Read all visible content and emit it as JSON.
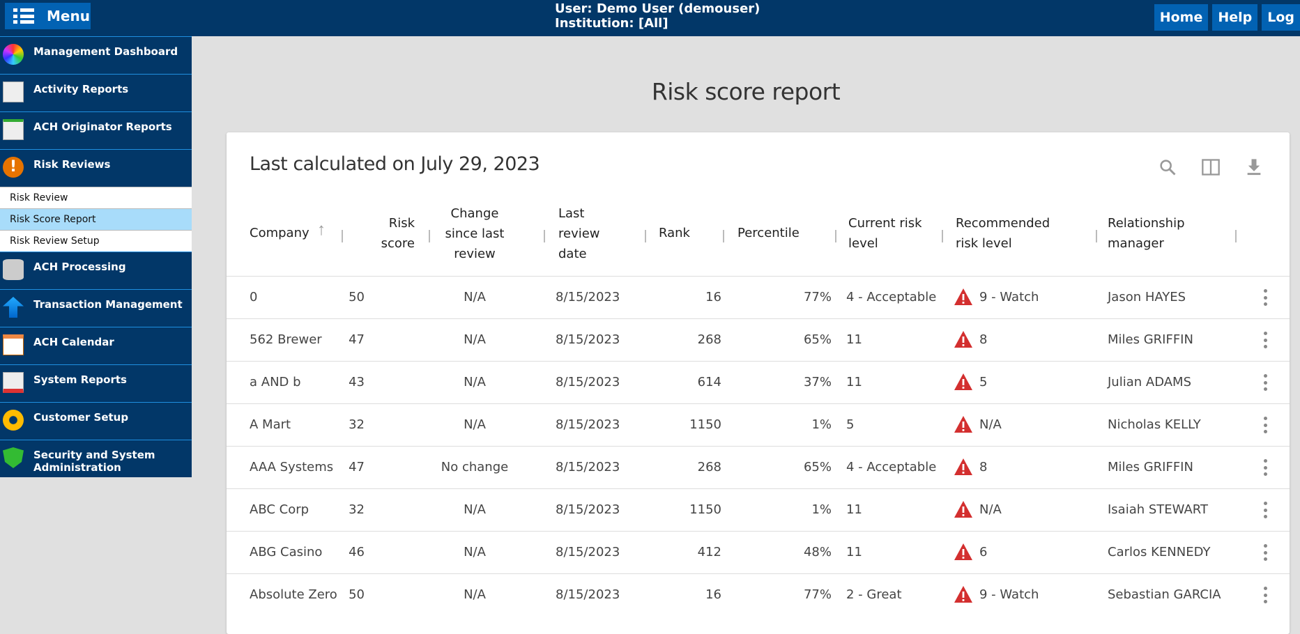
{
  "header": {
    "menu_label": "Menu",
    "user_line": "User: Demo User (demouser)",
    "institution_line": "Institution: [All]",
    "buttons": [
      "Home",
      "Help",
      "Log"
    ]
  },
  "sidebar": {
    "items": [
      {
        "label": "Management Dashboard",
        "icon": "pie-chart-icon"
      },
      {
        "label": "Activity Reports",
        "icon": "report-icon"
      },
      {
        "label": "ACH Originator Reports",
        "icon": "report-icon"
      },
      {
        "label": "Risk Reviews",
        "icon": "warning-icon"
      }
    ],
    "subitems": [
      {
        "label": "Risk Review"
      },
      {
        "label": "Risk Score Report",
        "active": true
      },
      {
        "label": "Risk Review Setup"
      }
    ],
    "items2": [
      {
        "label": "ACH Processing",
        "icon": "database-icon"
      },
      {
        "label": "Transaction Management",
        "icon": "upload-arrow-icon"
      },
      {
        "label": "ACH Calendar",
        "icon": "calendar-icon"
      },
      {
        "label": "System Reports",
        "icon": "chart-report-icon"
      },
      {
        "label": "Customer Setup",
        "icon": "gears-icon"
      },
      {
        "label": "Security and System Administration",
        "icon": "shield-icon"
      }
    ]
  },
  "page": {
    "title": "Risk score report",
    "last_calculated": "Last calculated on July 29, 2023"
  },
  "table": {
    "headers": [
      "Company",
      "Risk score",
      "Change since last review",
      "Last review date",
      "Rank",
      "Percentile",
      "Current risk level",
      "Recommended risk level",
      "Relationship manager"
    ],
    "sort": {
      "column": "Company",
      "direction": "ascending"
    },
    "rows": [
      [
        "0",
        "50",
        "N/A",
        "8/15/2023",
        "16",
        "77%",
        "4 - Acceptable",
        "9 - Watch",
        "Jason HAYES"
      ],
      [
        "562 Brewer",
        "47",
        "N/A",
        "8/15/2023",
        "268",
        "65%",
        "11",
        "8",
        "Miles GRIFFIN"
      ],
      [
        "a AND b",
        "43",
        "N/A",
        "8/15/2023",
        "614",
        "37%",
        "11",
        "5",
        "Julian ADAMS"
      ],
      [
        "A Mart",
        "32",
        "N/A",
        "8/15/2023",
        "1150",
        "1%",
        "5",
        "N/A",
        "Nicholas KELLY"
      ],
      [
        "AAA Systems",
        "47",
        "No change",
        "8/15/2023",
        "268",
        "65%",
        "4 - Acceptable",
        "8",
        "Miles GRIFFIN"
      ],
      [
        "ABC Corp",
        "32",
        "N/A",
        "8/15/2023",
        "1150",
        "1%",
        "11",
        "N/A",
        "Isaiah STEWART"
      ],
      [
        "ABG Casino",
        "46",
        "N/A",
        "8/15/2023",
        "412",
        "48%",
        "11",
        "6",
        "Carlos KENNEDY"
      ],
      [
        "Absolute Zero",
        "50",
        "N/A",
        "8/15/2023",
        "16",
        "77%",
        "2 - Great",
        "9 - Watch",
        "Sebastian GARCIA"
      ]
    ]
  },
  "colors": {
    "topbar": "#023768",
    "button": "#0262b3",
    "active_sub": "#a8dcfa",
    "warning": "#d32f2f"
  }
}
